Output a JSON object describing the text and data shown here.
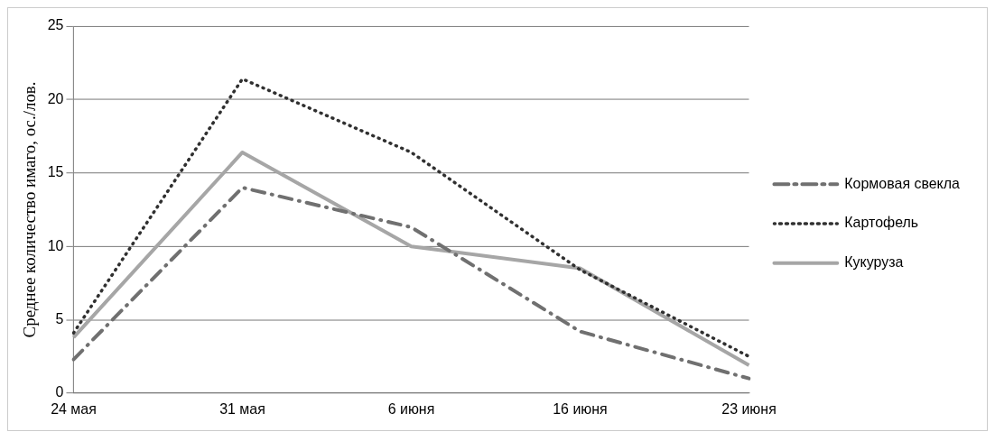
{
  "chart_data": {
    "type": "line",
    "ylabel": "Среднее количество имаго, ос./лов.",
    "categories": [
      "24 мая",
      "31 мая",
      "6 июня",
      "16 июня",
      "23 июня"
    ],
    "ylim": [
      0,
      25
    ],
    "yticks": [
      0,
      5,
      10,
      15,
      20,
      25
    ],
    "grid": "y",
    "legend": "right",
    "marker": "none",
    "series": [
      {
        "name": "Кормовая свекла",
        "color": "#707070",
        "line_style": "dashdot",
        "values": [
          2.3,
          14.0,
          11.3,
          4.2,
          1.0
        ]
      },
      {
        "name": "Картофель",
        "color": "#303030",
        "line_style": "dotted",
        "values": [
          4.1,
          21.4,
          16.4,
          8.4,
          2.5
        ]
      },
      {
        "name": "Кукуруза",
        "color": "#a6a6a6",
        "line_style": "solid",
        "values": [
          3.8,
          16.4,
          10.0,
          8.5,
          1.9
        ]
      }
    ]
  }
}
